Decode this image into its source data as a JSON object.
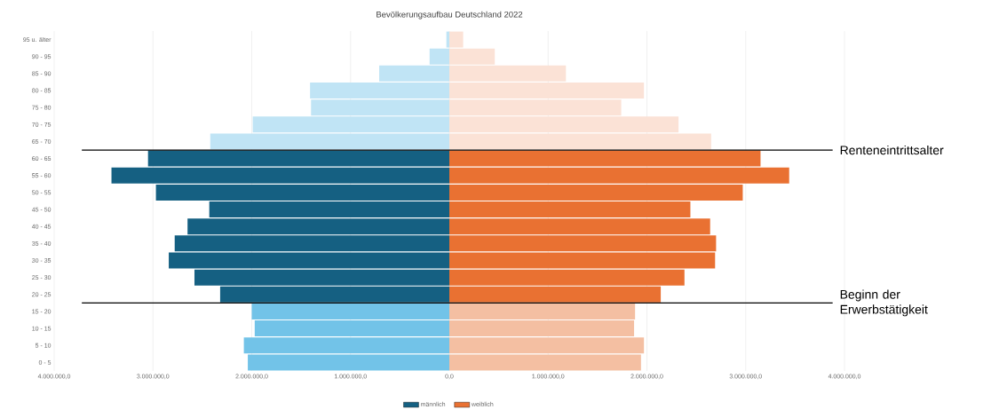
{
  "chart_data": {
    "type": "bar",
    "orientation": "horizontal",
    "title": "Bevölkerungsaufbau Deutschland 2022",
    "categories": [
      "95 u. älter",
      "90 - 95",
      "85 - 90",
      "80 - 85",
      "75 - 80",
      "70 - 75",
      "65 - 70",
      "60 - 65",
      "55 - 60",
      "50 - 55",
      "45 - 50",
      "40 - 45",
      "35 - 40",
      "30 - 35",
      "25 - 30",
      "20 - 25",
      "15 - 20",
      "10 - 15",
      "5 - 10",
      "0 - 5"
    ],
    "series": [
      {
        "name": "männlich",
        "color": "#156082",
        "values": [
          -30000,
          -200000,
          -710000,
          -1410000,
          -1400000,
          -1990000,
          -2420000,
          -3050000,
          -3420000,
          -2970000,
          -2430000,
          -2650000,
          -2780000,
          -2840000,
          -2580000,
          -2320000,
          -2000000,
          -1970000,
          -2080000,
          -2040000
        ],
        "colors": [
          "#c0e4f5",
          "#c0e4f5",
          "#c0e4f5",
          "#c0e4f5",
          "#c0e4f5",
          "#c0e4f5",
          "#c0e4f5",
          "#156082",
          "#156082",
          "#156082",
          "#156082",
          "#156082",
          "#156082",
          "#156082",
          "#156082",
          "#156082",
          "#72c3e8",
          "#72c3e8",
          "#72c3e8",
          "#72c3e8"
        ]
      },
      {
        "name": "weiblich",
        "color": "#e97132",
        "values": [
          140000,
          460000,
          1180000,
          1970000,
          1740000,
          2320000,
          2650000,
          3150000,
          3440000,
          2970000,
          2440000,
          2640000,
          2700000,
          2690000,
          2380000,
          2140000,
          1880000,
          1870000,
          1970000,
          1940000
        ],
        "colors": [
          "#fbe2d6",
          "#fbe2d6",
          "#fbe2d6",
          "#fbe2d6",
          "#fbe2d6",
          "#fbe2d6",
          "#fbe2d6",
          "#e97132",
          "#e97132",
          "#e97132",
          "#e97132",
          "#e97132",
          "#e97132",
          "#e97132",
          "#e97132",
          "#e97132",
          "#f4bfa2",
          "#f4bfa2",
          "#f4bfa2",
          "#f4bfa2"
        ]
      }
    ],
    "xlim": [
      -4000000,
      4000000
    ],
    "xticks": [
      {
        "value": -4000000,
        "label": "4.000.000,0"
      },
      {
        "value": -3000000,
        "label": "3.000.000,0"
      },
      {
        "value": -2000000,
        "label": "2.000.000,0"
      },
      {
        "value": -1000000,
        "label": "1.000.000,0"
      },
      {
        "value": 0,
        "label": "0,0"
      },
      {
        "value": 1000000,
        "label": "1.000.000,0"
      },
      {
        "value": 2000000,
        "label": "2.000.000,0"
      },
      {
        "value": 3000000,
        "label": "3.000.000,0"
      },
      {
        "value": 4000000,
        "label": "4.000.000,0"
      }
    ],
    "ref_lines": [
      {
        "axis": "y",
        "value": "65 - 70",
        "label": "Renteneintrittsalter",
        "color": "#000000"
      },
      {
        "axis": "y",
        "value": "20 - 25",
        "label": "Beginn der Erwerbstätigkeit",
        "color": "#000000"
      }
    ],
    "grid": "x",
    "legend": "bottom",
    "stacked": true
  }
}
